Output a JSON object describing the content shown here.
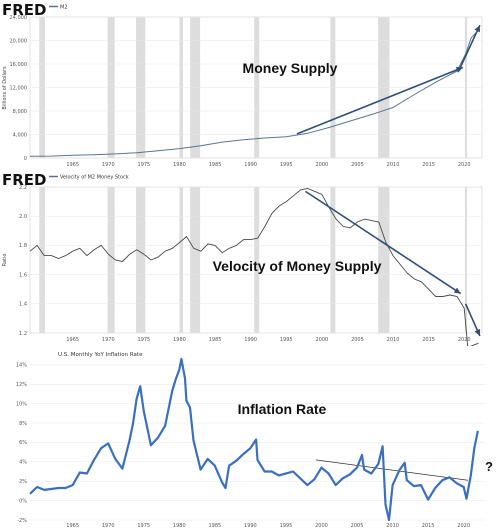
{
  "colors": {
    "fred_line": "#5b7591",
    "fred_plot_bg": "#ffffff",
    "recession_band": "#dddddd",
    "arrow": "#2f4f76",
    "inflation_line": "#3a6fc0",
    "grid": "#e6e6e6"
  },
  "chart_data": [
    {
      "type": "line",
      "brand": "FRED",
      "legend": "M2",
      "annotation": "Money Supply",
      "ylabel": "Billions of Dollars",
      "ylim": [
        0,
        24000
      ],
      "xlim": [
        1959,
        2022.5
      ],
      "yticks": [
        "0",
        "4,000",
        "8,000",
        "12,000",
        "16,000",
        "20,000",
        "24,000"
      ],
      "ytick_values": [
        0,
        4000,
        8000,
        12000,
        16000,
        20000,
        24000
      ],
      "xticks": [
        "1965",
        "1970",
        "1975",
        "1980",
        "1985",
        "1990",
        "1995",
        "2000",
        "2005",
        "2010",
        "2015",
        "2020"
      ],
      "xtick_values": [
        1965,
        1970,
        1975,
        1980,
        1985,
        1990,
        1995,
        2000,
        2005,
        2010,
        2015,
        2020
      ],
      "recessions": [
        [
          1960.3,
          1961.1
        ],
        [
          1969.9,
          1970.9
        ],
        [
          1973.9,
          1975.2
        ],
        [
          1980.0,
          1980.5
        ],
        [
          1981.5,
          1982.9
        ],
        [
          1990.5,
          1991.2
        ],
        [
          2001.2,
          2001.9
        ],
        [
          2007.9,
          2009.5
        ],
        [
          2020.1,
          2020.4
        ]
      ],
      "series": [
        {
          "x": [
            1959,
            1962,
            1965,
            1968,
            1971,
            1974,
            1977,
            1980,
            1983,
            1986,
            1989,
            1992,
            1995,
            1998,
            2001,
            2004,
            2007,
            2010,
            2013,
            2016,
            2019,
            2020.2,
            2021,
            2022
          ],
          "values": [
            290,
            330,
            460,
            560,
            700,
            900,
            1250,
            1600,
            2100,
            2700,
            3100,
            3400,
            3600,
            4200,
            5200,
            6300,
            7400,
            8600,
            10800,
            12900,
            14800,
            17700,
            20500,
            21700
          ]
        }
      ],
      "arrows": [
        {
          "from": [
            1996.5,
            4100
          ],
          "to": [
            2019.8,
            15400
          ]
        },
        {
          "from": [
            2019.3,
            15000
          ],
          "to": [
            2022.2,
            22600
          ]
        }
      ]
    },
    {
      "type": "line",
      "brand": "FRED",
      "legend": "Velocity of M2 Money Stock",
      "annotation": "Velocity of Money Supply",
      "ylabel": "Ratio",
      "ylim": [
        1.2,
        2.2
      ],
      "xlim": [
        1959,
        2022.5
      ],
      "yticks": [
        "1.2",
        "1.4",
        "1.6",
        "1.8",
        "2.0",
        "2.2"
      ],
      "ytick_values": [
        1.2,
        1.4,
        1.6,
        1.8,
        2.0,
        2.2
      ],
      "xticks": [
        "1965",
        "1970",
        "1975",
        "1980",
        "1985",
        "1990",
        "1995",
        "2000",
        "2005",
        "2010",
        "2015",
        "2020"
      ],
      "xtick_values": [
        1965,
        1970,
        1975,
        1980,
        1985,
        1990,
        1995,
        2000,
        2005,
        2010,
        2015,
        2020
      ],
      "recessions": [
        [
          1960.3,
          1961.1
        ],
        [
          1969.9,
          1970.9
        ],
        [
          1973.9,
          1975.2
        ],
        [
          1980.0,
          1980.5
        ],
        [
          1981.5,
          1982.9
        ],
        [
          1990.5,
          1991.2
        ],
        [
          2001.2,
          2001.9
        ],
        [
          2007.9,
          2009.5
        ],
        [
          2020.1,
          2020.4
        ]
      ],
      "series": [
        {
          "x": [
            1959,
            1960,
            1961,
            1962,
            1963,
            1964,
            1965,
            1966,
            1967,
            1968,
            1969,
            1970,
            1971,
            1972,
            1973,
            1974,
            1975,
            1976,
            1977,
            1978,
            1979,
            1980,
            1981,
            1982,
            1983,
            1984,
            1985,
            1986,
            1987,
            1988,
            1989,
            1990,
            1991,
            1992,
            1993,
            1994,
            1995,
            1996,
            1997,
            1998,
            1999,
            2000,
            2001,
            2002,
            2003,
            2004,
            2005,
            2006,
            2007,
            2008,
            2009,
            2010,
            2011,
            2012,
            2013,
            2014,
            2015,
            2016,
            2017,
            2018,
            2019,
            2020,
            2020.5,
            2021,
            2022
          ],
          "values": [
            1.76,
            1.8,
            1.73,
            1.73,
            1.71,
            1.73,
            1.76,
            1.78,
            1.73,
            1.77,
            1.8,
            1.74,
            1.7,
            1.69,
            1.74,
            1.77,
            1.74,
            1.7,
            1.72,
            1.76,
            1.78,
            1.82,
            1.86,
            1.78,
            1.76,
            1.81,
            1.8,
            1.75,
            1.78,
            1.8,
            1.84,
            1.84,
            1.85,
            1.93,
            2.02,
            2.07,
            2.1,
            2.14,
            2.18,
            2.19,
            2.17,
            2.15,
            2.06,
            1.98,
            1.93,
            1.92,
            1.96,
            1.98,
            1.97,
            1.96,
            1.82,
            1.73,
            1.67,
            1.61,
            1.57,
            1.55,
            1.5,
            1.45,
            1.45,
            1.46,
            1.45,
            1.37,
            1.1,
            1.11,
            1.13
          ]
        }
      ],
      "arrows": [
        {
          "from": [
            1997.7,
            2.17
          ],
          "to": [
            2019.5,
            1.47
          ]
        },
        {
          "from": [
            2020.2,
            1.4
          ],
          "to": [
            2022.2,
            1.18
          ]
        }
      ]
    },
    {
      "type": "line",
      "title": "U.S. Monthly YoY Inflation Rate",
      "annotation": "Inflation Rate",
      "ylim": [
        -2,
        14.5
      ],
      "xlim": [
        1959,
        2023
      ],
      "yticks": [
        "-2%",
        "0%",
        "2%",
        "4%",
        "6%",
        "8%",
        "10%",
        "12%",
        "14%"
      ],
      "ytick_values": [
        -2,
        0,
        2,
        4,
        6,
        8,
        10,
        12,
        14
      ],
      "xticks": [
        "1965",
        "1970",
        "1975",
        "1980",
        "1985",
        "1990",
        "1995",
        "2000",
        "2005",
        "2010",
        "2015",
        "2020"
      ],
      "xtick_values": [
        1965,
        1970,
        1975,
        1980,
        1985,
        1990,
        1995,
        2000,
        2005,
        2010,
        2015,
        2020
      ],
      "series": [
        {
          "x": [
            1959,
            1960,
            1961,
            1962,
            1963,
            1964,
            1965,
            1966,
            1967,
            1968,
            1969,
            1970,
            1971,
            1972,
            1973,
            1973.5,
            1974,
            1974.5,
            1975,
            1975.5,
            1976,
            1977,
            1978,
            1979,
            1979.5,
            1980,
            1980.3,
            1980.8,
            1981,
            1981.5,
            1982,
            1983,
            1984,
            1985,
            1986,
            1986.5,
            1987,
            1988,
            1989,
            1990,
            1990.8,
            1991,
            1992,
            1993,
            1994,
            1995,
            1996,
            1997,
            1998,
            1999,
            2000,
            2001,
            2002,
            2003,
            2004,
            2005,
            2005.7,
            2006,
            2007,
            2008,
            2008.6,
            2009,
            2009.5,
            2010,
            2011,
            2011.7,
            2012,
            2013,
            2014,
            2015,
            2016,
            2017,
            2018,
            2019,
            2020,
            2020.4,
            2021,
            2021.5,
            2022
          ],
          "values": [
            0.7,
            1.4,
            1.1,
            1.2,
            1.3,
            1.3,
            1.6,
            2.9,
            2.8,
            4.2,
            5.4,
            5.9,
            4.3,
            3.3,
            6.2,
            8.0,
            10.5,
            11.8,
            9.2,
            7.5,
            5.7,
            6.5,
            7.7,
            11.3,
            12.5,
            13.5,
            14.6,
            12.6,
            10.3,
            9.6,
            6.2,
            3.2,
            4.3,
            3.6,
            1.9,
            1.3,
            3.6,
            4.1,
            4.8,
            5.4,
            6.3,
            4.2,
            3.0,
            3.0,
            2.6,
            2.8,
            3.0,
            2.3,
            1.6,
            2.2,
            3.4,
            2.8,
            1.6,
            2.3,
            2.7,
            3.4,
            4.7,
            3.2,
            2.8,
            3.8,
            5.6,
            -0.4,
            -2.0,
            1.6,
            3.2,
            3.9,
            2.1,
            1.5,
            1.6,
            0.1,
            1.3,
            2.1,
            2.4,
            1.8,
            1.4,
            0.2,
            2.6,
            5.4,
            7.2
          ]
        }
      ],
      "trend_line": {
        "from": [
          1999.2,
          4.2
        ],
        "to": [
          2020.6,
          2.1
        ]
      },
      "question_mark": "?"
    }
  ]
}
